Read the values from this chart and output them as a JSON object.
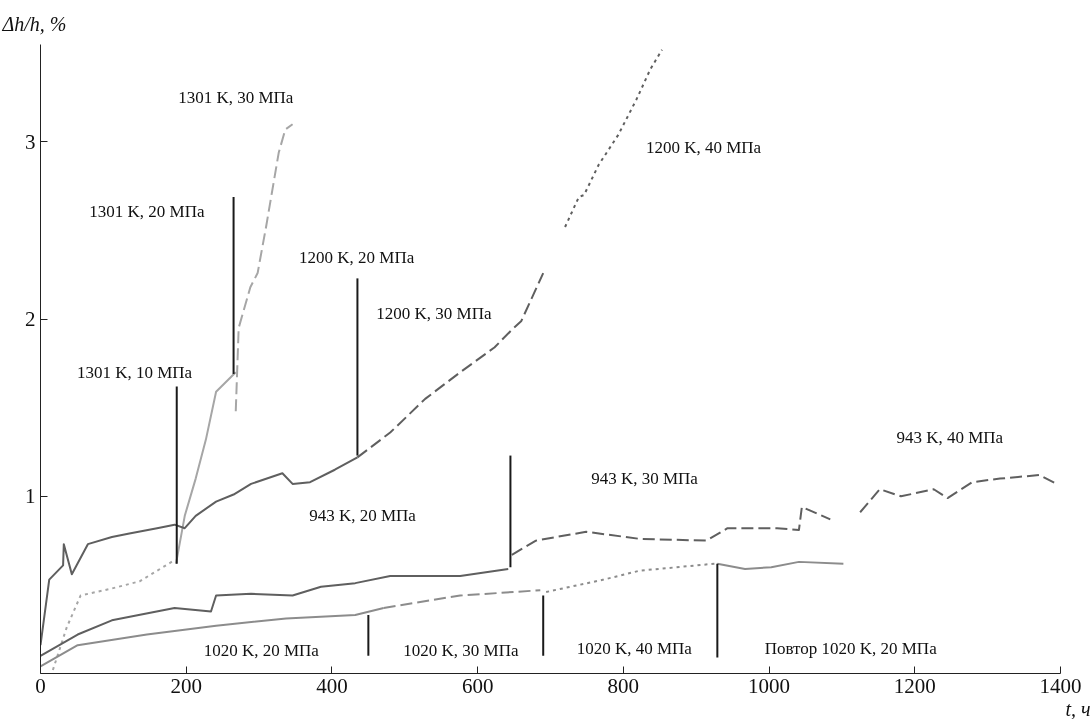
{
  "chart_data": {
    "type": "line",
    "xlabel": "t, ч",
    "ylabel": "Δh/h, %",
    "xlim": [
      0,
      1400
    ],
    "ylim": [
      0,
      3.55
    ],
    "xticks": [
      0,
      200,
      400,
      600,
      800,
      1000,
      1200,
      1400
    ],
    "yticks": [
      1,
      2,
      3
    ],
    "tick_labels": true,
    "grid": false,
    "marker": "none",
    "series": [
      {
        "color": "#a6a6a6",
        "line_style": "dotted",
        "x": [
          17,
          36,
          55,
          98,
          136,
          184
        ],
        "values": [
          0.02,
          0.26,
          0.44,
          0.48,
          0.52,
          0.64
        ]
      },
      {
        "color": "#a6a6a6",
        "line_style": "solid",
        "x": [
          186,
          198,
          213,
          227,
          241,
          268
        ],
        "values": [
          0.62,
          0.89,
          1.1,
          1.32,
          1.59,
          1.7
        ]
      },
      {
        "color": "#a6a6a6",
        "line_style": "dashed",
        "x": [
          268,
          272,
          288,
          298,
          310,
          327,
          336,
          346
        ],
        "values": [
          1.48,
          1.95,
          2.18,
          2.26,
          2.53,
          2.94,
          3.07,
          3.1
        ]
      },
      {
        "color": "#5f5f5f",
        "line_style": "solid",
        "x": [
          0,
          12,
          31,
          32,
          43,
          65,
          98,
          122,
          160,
          184,
          198,
          213,
          241,
          265,
          289,
          332,
          346,
          370,
          404,
          435
        ],
        "values": [
          0.16,
          0.53,
          0.61,
          0.73,
          0.56,
          0.73,
          0.77,
          0.79,
          0.82,
          0.84,
          0.82,
          0.89,
          0.97,
          1.01,
          1.07,
          1.13,
          1.07,
          1.08,
          1.15,
          1.22
        ]
      },
      {
        "color": "#5f5f5f",
        "line_style": "dashed",
        "x": [
          435,
          480,
          528,
          576,
          623,
          647,
          660,
          690
        ],
        "values": [
          1.22,
          1.36,
          1.55,
          1.7,
          1.84,
          1.94,
          1.99,
          2.26
        ]
      },
      {
        "color": "#5f5f5f",
        "line_style": "dotted",
        "x": [
          720,
          739,
          746,
          766,
          793,
          818,
          837,
          853
        ],
        "values": [
          2.52,
          2.69,
          2.7,
          2.87,
          3.04,
          3.24,
          3.41,
          3.52
        ]
      },
      {
        "color": "#5f5f5f",
        "line_style": "solid",
        "x": [
          0,
          51,
          98,
          184,
          234,
          241,
          289,
          346,
          385,
          432,
          480,
          528,
          576,
          642
        ],
        "values": [
          0.1,
          0.22,
          0.3,
          0.37,
          0.35,
          0.44,
          0.45,
          0.44,
          0.49,
          0.51,
          0.55,
          0.55,
          0.55,
          0.59
        ]
      },
      {
        "color": "#5f5f5f",
        "line_style": "dashed",
        "x": [
          647,
          680,
          749,
          822,
          914,
          943,
          1011,
          1041,
          1045,
          1084
        ],
        "values": [
          0.67,
          0.75,
          0.8,
          0.76,
          0.75,
          0.82,
          0.82,
          0.81,
          0.94,
          0.87
        ]
      },
      {
        "color": "#5f5f5f",
        "line_style": "dashed",
        "x": [
          1125,
          1152,
          1181,
          1226,
          1245,
          1279,
          1317,
          1371,
          1395
        ],
        "values": [
          0.91,
          1.04,
          1.0,
          1.04,
          0.99,
          1.08,
          1.1,
          1.12,
          1.07
        ]
      },
      {
        "color": "#8c8c8c",
        "line_style": "solid",
        "x": [
          0,
          51,
          146,
          241,
          337,
          432,
          471
        ],
        "values": [
          0.04,
          0.16,
          0.22,
          0.27,
          0.31,
          0.33,
          0.37
        ]
      },
      {
        "color": "#8c8c8c",
        "line_style": "dashed",
        "x": [
          471,
          576,
          686
        ],
        "values": [
          0.37,
          0.44,
          0.47
        ]
      },
      {
        "color": "#8c8c8c",
        "line_style": "dotted",
        "x": [
          694,
          773,
          822,
          926
        ],
        "values": [
          0.46,
          0.53,
          0.58,
          0.62
        ]
      },
      {
        "color": "#8c8c8c",
        "line_style": "solid",
        "x": [
          929,
          967,
          1003,
          1041,
          1102
        ],
        "values": [
          0.62,
          0.59,
          0.6,
          0.63,
          0.62
        ]
      },
      {
        "color": "#1a1a1a",
        "line_style": "solid",
        "x": [
          187,
          187
        ],
        "values": [
          0.62,
          1.62
        ]
      },
      {
        "color": "#1a1a1a",
        "line_style": "solid",
        "x": [
          265,
          265
        ],
        "values": [
          1.69,
          2.69
        ]
      },
      {
        "color": "#1a1a1a",
        "line_style": "solid",
        "x": [
          435,
          435
        ],
        "values": [
          1.23,
          2.23
        ]
      },
      {
        "color": "#1a1a1a",
        "line_style": "solid",
        "x": [
          645,
          645
        ],
        "values": [
          0.6,
          1.23
        ]
      },
      {
        "color": "#1a1a1a",
        "line_style": "solid",
        "x": [
          450,
          450
        ],
        "values": [
          0.1,
          0.33
        ]
      },
      {
        "color": "#1a1a1a",
        "line_style": "solid",
        "x": [
          690,
          690
        ],
        "values": [
          0.1,
          0.44
        ]
      },
      {
        "color": "#1a1a1a",
        "line_style": "solid",
        "x": [
          929,
          929
        ],
        "values": [
          0.09,
          0.62
        ]
      }
    ],
    "annotations": [
      "1301 K, 30 MПa",
      "1301 K, 20 MПa",
      "1200 K, 20 MПa",
      "1200 K, 30 MПa",
      "1301 K, 10 MПa",
      "1200 K, 40 MПa",
      "943 K, 20 MПa",
      "943 K, 30 MПa",
      "943 K, 40 MПa",
      "1020 K, 20 MПa",
      "1020 K, 30 MПa",
      "1020 K, 40 MПa",
      "Повтор 1020 K, 20 MПa"
    ]
  }
}
